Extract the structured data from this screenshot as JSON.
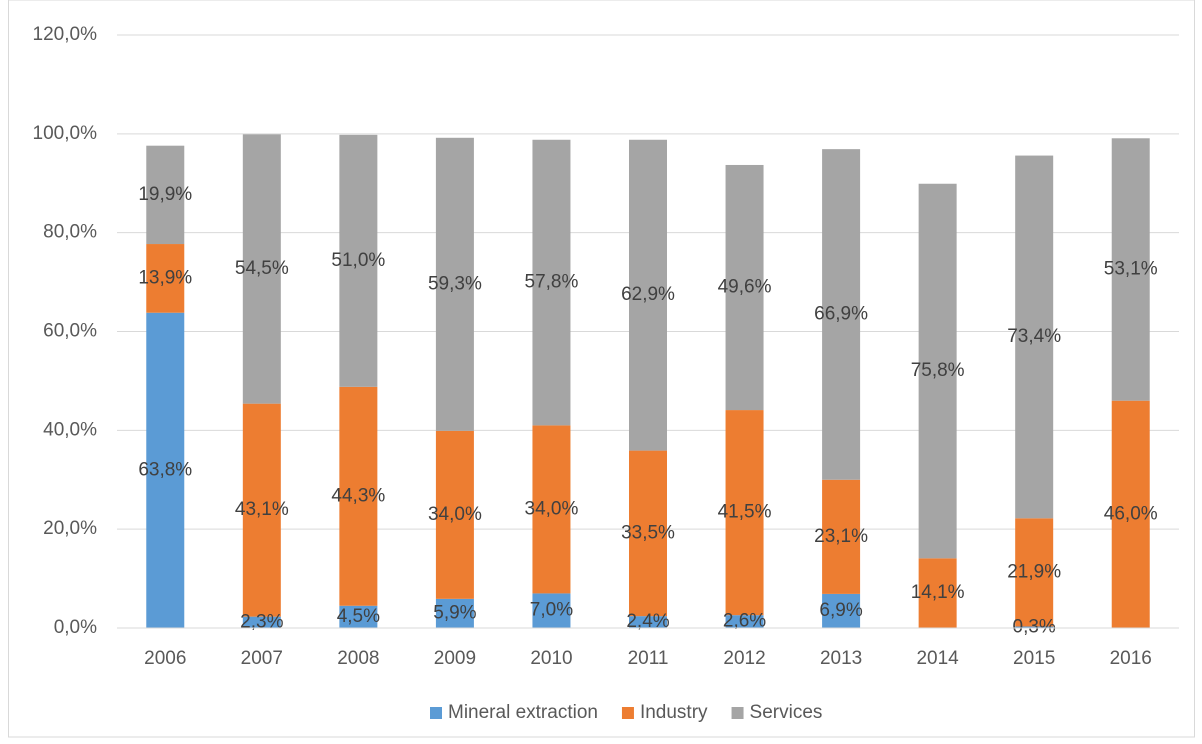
{
  "chart_data": {
    "type": "stacked-bar",
    "categories": [
      "2006",
      "2007",
      "2008",
      "2009",
      "2010",
      "2011",
      "2012",
      "2013",
      "2014",
      "2015",
      "2016"
    ],
    "series": [
      {
        "name": "Mineral extraction",
        "color": "#5b9bd5",
        "values": [
          63.8,
          2.3,
          4.5,
          5.9,
          7.0,
          2.4,
          2.6,
          6.9,
          null,
          0.3,
          null
        ],
        "value_labels": [
          "63,8%",
          "2,3%",
          "4,5%",
          "5,9%",
          "7,0%",
          "2,4%",
          "2,6%",
          "6,9%",
          null,
          "0,3%",
          null
        ]
      },
      {
        "name": "Industry",
        "color": "#ed7d31",
        "values": [
          13.9,
          43.1,
          44.3,
          34.0,
          34.0,
          33.5,
          41.5,
          23.1,
          14.1,
          21.9,
          46.0
        ],
        "value_labels": [
          "13,9%",
          "43,1%",
          "44,3%",
          "34,0%",
          "34,0%",
          "33,5%",
          "41,5%",
          "23,1%",
          "14,1%",
          "21,9%",
          "46,0%"
        ]
      },
      {
        "name": "Services",
        "color": "#a5a5a5",
        "values": [
          19.9,
          54.5,
          51.0,
          59.3,
          57.8,
          62.9,
          49.6,
          66.9,
          75.8,
          73.4,
          53.1
        ],
        "value_labels": [
          "19,9%",
          "54,5%",
          "51,0%",
          "59,3%",
          "57,8%",
          "62,9%",
          "49,6%",
          "66,9%",
          "75,8%",
          "73,4%",
          "53,1%"
        ]
      }
    ],
    "ylim": [
      0,
      120
    ],
    "yticks": [
      {
        "value": 0,
        "label": "0,0%"
      },
      {
        "value": 20,
        "label": "20,0%"
      },
      {
        "value": 40,
        "label": "40,0%"
      },
      {
        "value": 60,
        "label": "60,0%"
      },
      {
        "value": 80,
        "label": "80,0%"
      },
      {
        "value": 100,
        "label": "100,0%"
      },
      {
        "value": 120,
        "label": "120,0%"
      }
    ],
    "grid": true,
    "legend": "bottom"
  }
}
